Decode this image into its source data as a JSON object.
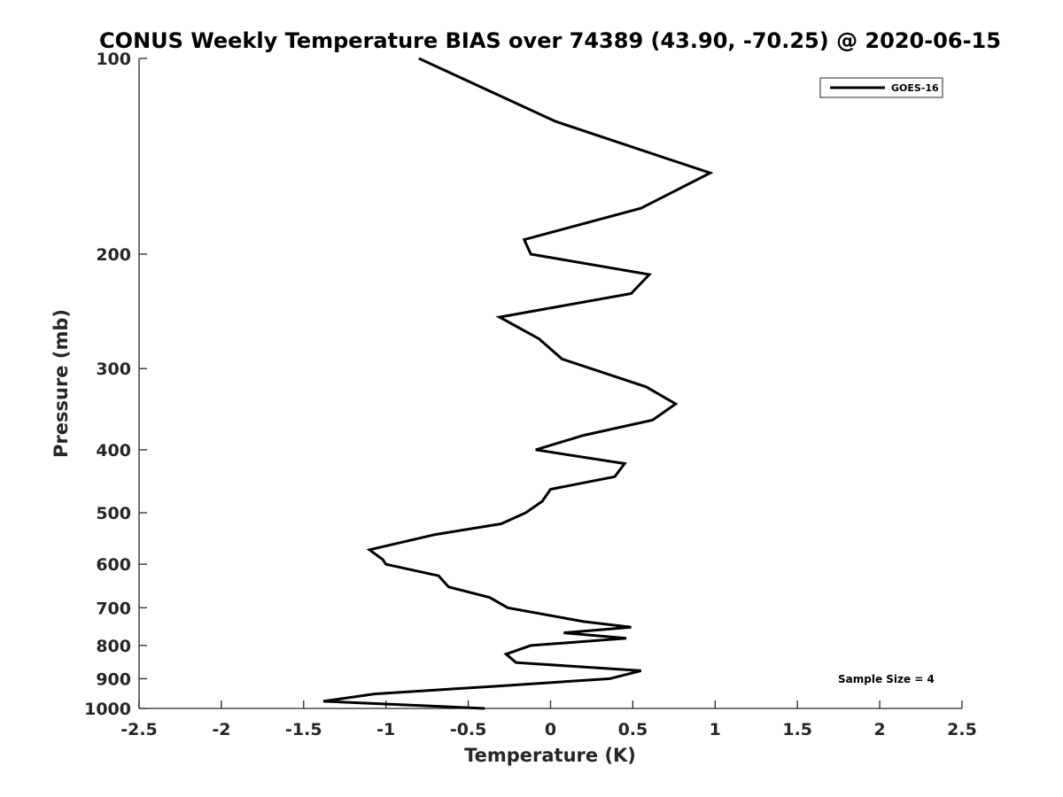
{
  "chart_data": {
    "type": "line",
    "title": "CONUS Weekly Temperature BIAS over 74389 (43.90, -70.25) @ 2020-06-15",
    "xlabel": "Temperature (K)",
    "ylabel": "Pressure (mb)",
    "xlim": [
      -2.5,
      2.5
    ],
    "ylim": [
      1000,
      100
    ],
    "yscale": "log",
    "y_reversed": true,
    "x_ticks": [
      -2.5,
      -2,
      -1.5,
      -1,
      -0.5,
      0,
      0.5,
      1,
      1.5,
      2,
      2.5
    ],
    "x_tick_labels": [
      "-2.5",
      "-2",
      "-1.5",
      "-1",
      "-0.5",
      "0",
      "0.5",
      "1",
      "1.5",
      "2",
      "2.5"
    ],
    "y_ticks": [
      100,
      200,
      300,
      400,
      500,
      600,
      700,
      800,
      900,
      1000
    ],
    "y_tick_labels": [
      "100",
      "200",
      "300",
      "400",
      "500",
      "600",
      "700",
      "800",
      "900",
      "1000"
    ],
    "grid": false,
    "legend_position": "top-right",
    "series_color": "#000000",
    "series": [
      {
        "name": "GOES-16",
        "x": [
          -0.8,
          0.03,
          0.97,
          0.55,
          -0.16,
          -0.12,
          0.6,
          0.49,
          -0.31,
          -0.07,
          0.07,
          0.58,
          0.76,
          0.62,
          0.2,
          -0.09,
          0.45,
          0.39,
          0.0,
          -0.05,
          -0.15,
          -0.3,
          -0.7,
          -1.1,
          -1.02,
          -1.0,
          -0.68,
          -0.62,
          -0.37,
          -0.26,
          0.2,
          0.49,
          0.08,
          0.46,
          -0.12,
          -0.27,
          -0.21,
          0.55,
          0.36,
          -0.35,
          -1.07,
          -1.38,
          -0.4
        ],
        "y": [
          100,
          125,
          150,
          170,
          190,
          200,
          215,
          230,
          250,
          270,
          290,
          320,
          340,
          360,
          380,
          400,
          420,
          440,
          460,
          480,
          500,
          520,
          540,
          570,
          590,
          600,
          625,
          650,
          675,
          700,
          735,
          750,
          765,
          780,
          800,
          825,
          850,
          875,
          900,
          925,
          950,
          975,
          1000
        ]
      }
    ],
    "annotations": [
      {
        "text": "Sample Size = 4",
        "position": "bottom-right"
      }
    ]
  }
}
